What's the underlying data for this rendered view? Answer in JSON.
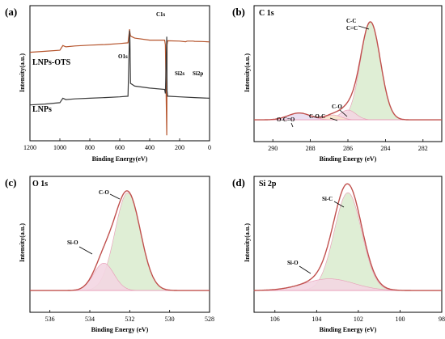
{
  "colors": {
    "envelope": "#c0504d",
    "envelope_b": "#d98880",
    "survey_top": "#b5542c",
    "survey_bottom": "#3a3a3a",
    "green_fill": "#dcecd0",
    "pink_fill": "#f3d6e2",
    "peach_fill": "#f7e4cc",
    "purple_fill": "#e8dcef",
    "baseline": "#e79ab5"
  },
  "chart_data": [
    {
      "id": "a",
      "panel_label": "(a)",
      "type": "line",
      "title": "",
      "xlabel": "Binding Energy(eV)",
      "ylabel": "Intensity(a.u.)",
      "xlim": [
        1200,
        0
      ],
      "x_reversed": true,
      "xticks": [
        "1200",
        "1000",
        "800",
        "600",
        "400",
        "200",
        "0"
      ],
      "xtick_values": [
        1200,
        1000,
        800,
        600,
        400,
        200,
        0
      ],
      "series": [
        {
          "name": "LNPs-OTS",
          "x": [
            1200,
            1100,
            1000,
            980,
            960,
            900,
            800,
            700,
            600,
            545,
            534,
            532,
            528,
            500,
            400,
            300,
            295,
            286,
            284,
            280,
            200,
            160,
            150,
            110,
            100,
            50,
            0
          ],
          "y": [
            0.345,
            0.338,
            0.33,
            0.295,
            0.305,
            0.298,
            0.292,
            0.288,
            0.28,
            0.275,
            0.175,
            0.2,
            0.225,
            0.24,
            0.255,
            0.255,
            0.29,
            0.96,
            0.29,
            0.26,
            0.262,
            0.267,
            0.262,
            0.262,
            0.264,
            0.265,
            0.268
          ]
        },
        {
          "name": "LNPs",
          "x": [
            1200,
            1100,
            1000,
            980,
            960,
            900,
            800,
            700,
            600,
            545,
            534,
            532,
            528,
            500,
            400,
            300,
            295,
            286,
            284,
            280,
            200,
            100,
            0
          ],
          "y": [
            0.735,
            0.728,
            0.718,
            0.685,
            0.695,
            0.69,
            0.685,
            0.68,
            0.675,
            0.67,
            0.185,
            0.26,
            0.575,
            0.595,
            0.61,
            0.62,
            0.65,
            0.23,
            0.63,
            0.67,
            0.675,
            0.68,
            0.685
          ]
        }
      ],
      "annotations": [
        "C1s",
        "O1s",
        "Si2s",
        "Si2p"
      ]
    },
    {
      "id": "b",
      "panel_label": "(b)",
      "type": "area",
      "title": "C 1s",
      "xlabel": "Binding Energy (eV)",
      "ylabel": "Intensity(a.u.)",
      "xlim": [
        291,
        281
      ],
      "x_reversed": true,
      "xticks": [
        "290",
        "288",
        "286",
        "284",
        "282"
      ],
      "xtick_values": [
        290,
        288,
        286,
        284,
        282
      ],
      "peaks": [
        {
          "label": "C-C C=C",
          "center": 284.8,
          "height": 1.0,
          "width": 1.25,
          "fill": "green"
        },
        {
          "label": "C-O",
          "center": 286.0,
          "height": 0.1,
          "width": 1.0,
          "fill": "pink"
        },
        {
          "label": "C-O-C",
          "center": 286.8,
          "height": 0.05,
          "width": 1.0,
          "fill": "peach"
        },
        {
          "label": "O-C=O",
          "center": 288.6,
          "height": 0.07,
          "width": 1.4,
          "fill": "purple"
        }
      ],
      "annotations": [
        "C-C",
        "C=C",
        "C-O",
        "C-O-C",
        "O-C=O"
      ]
    },
    {
      "id": "c",
      "panel_label": "(c)",
      "type": "area",
      "title": "O 1s",
      "xlabel": "Binding Energy (eV)",
      "ylabel": "Intensity(a.u.)",
      "xlim": [
        537,
        528
      ],
      "x_reversed": true,
      "xticks": [
        "536",
        "534",
        "532",
        "530",
        "528"
      ],
      "xtick_values": [
        536,
        534,
        532,
        530,
        528
      ],
      "peaks": [
        {
          "label": "C-O",
          "center": 532.1,
          "height": 1.0,
          "width": 1.5,
          "fill": "green"
        },
        {
          "label": "Si-O",
          "center": 533.3,
          "height": 0.28,
          "width": 1.2,
          "fill": "pink"
        }
      ],
      "annotations": [
        "C-O",
        "Si-O"
      ]
    },
    {
      "id": "d",
      "panel_label": "(d)",
      "type": "area",
      "title": "Si 2p",
      "xlabel": "Binding Energy (eV)",
      "ylabel": "Intensity(a.u.)",
      "xlim": [
        107,
        98
      ],
      "x_reversed": true,
      "xticks": [
        "106",
        "104",
        "102",
        "100",
        "98"
      ],
      "xtick_values": [
        106,
        104,
        102,
        100,
        98
      ],
      "peaks": [
        {
          "label": "Si-C",
          "center": 102.5,
          "height": 1.0,
          "width": 1.55,
          "fill": "green"
        },
        {
          "label": "Si-O",
          "center": 103.4,
          "height": 0.12,
          "width": 2.8,
          "fill": "pink"
        }
      ],
      "annotations": [
        "Si-C",
        "Si-O"
      ]
    }
  ]
}
